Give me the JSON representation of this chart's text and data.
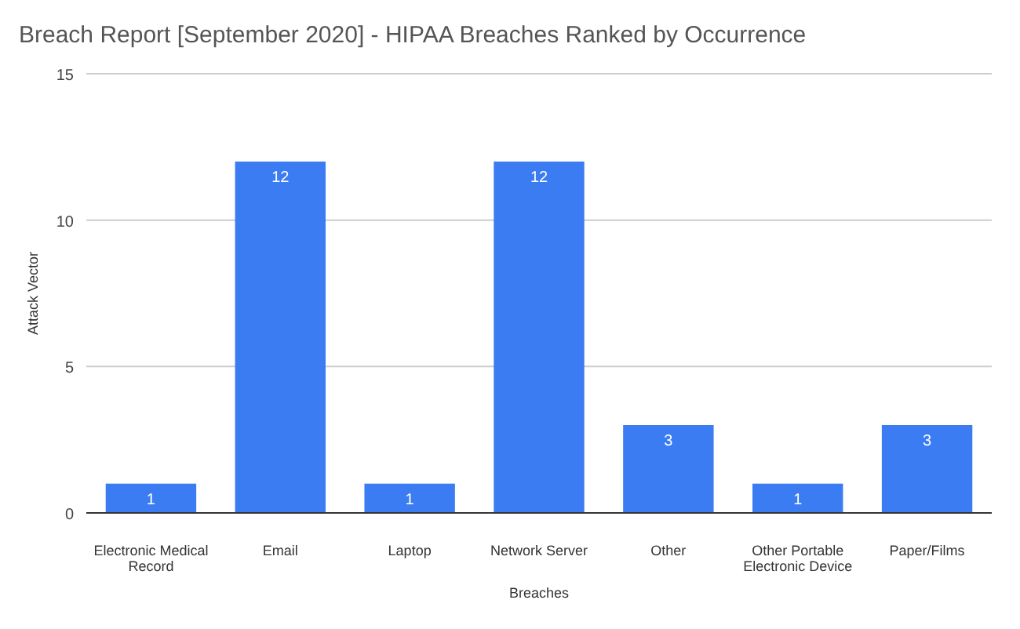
{
  "chart_data": {
    "type": "bar",
    "title": "Breach Report [September 2020] - HIPAA Breaches Ranked by Occurrence",
    "xlabel": "Breaches",
    "ylabel": "Attack Vector",
    "categories": [
      "Electronic Medical Record",
      "Email",
      "Laptop",
      "Network Server",
      "Other",
      "Other Portable Electronic Device",
      "Paper/Films"
    ],
    "values": [
      1,
      12,
      1,
      12,
      3,
      1,
      3
    ],
    "color": "#3b7cf2",
    "ylim": [
      0,
      15
    ],
    "yticks": [
      0,
      5,
      10,
      15
    ],
    "grid": "y",
    "data_labels": true
  }
}
